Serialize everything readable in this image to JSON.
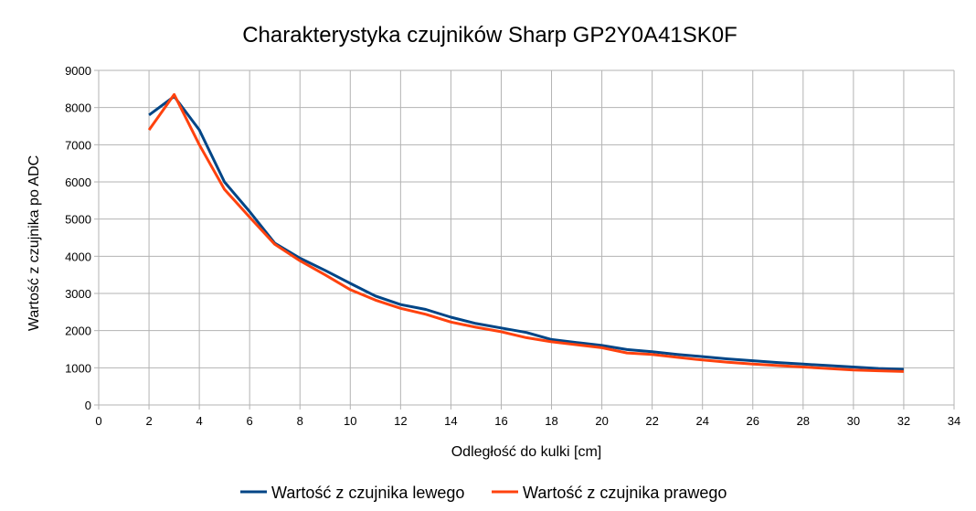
{
  "chart_data": {
    "type": "line",
    "title": "Charakterystyka czujników Sharp GP2Y0A41SK0F",
    "xlabel": "Odległość do kulki [cm]",
    "ylabel": "Wartość z czujnika po ADC",
    "xlim": [
      0,
      34
    ],
    "ylim": [
      0,
      9000
    ],
    "xticks": [
      0,
      2,
      4,
      6,
      8,
      10,
      12,
      14,
      16,
      18,
      20,
      22,
      24,
      26,
      28,
      30,
      32,
      34
    ],
    "yticks": [
      0,
      1000,
      2000,
      3000,
      4000,
      5000,
      6000,
      7000,
      8000,
      9000
    ],
    "grid": true,
    "legend_position": "bottom",
    "x": [
      2,
      3,
      4,
      5,
      6,
      7,
      8,
      9,
      10,
      11,
      12,
      13,
      14,
      15,
      16,
      17,
      18,
      19,
      20,
      21,
      22,
      23,
      24,
      25,
      26,
      27,
      28,
      29,
      30,
      31,
      32
    ],
    "series": [
      {
        "name": "Wartość z czujnika lewego",
        "color": "#004586",
        "values": [
          7800,
          8300,
          7400,
          6000,
          5200,
          4350,
          3950,
          3620,
          3270,
          2930,
          2700,
          2570,
          2360,
          2190,
          2070,
          1950,
          1760,
          1680,
          1600,
          1490,
          1430,
          1360,
          1300,
          1240,
          1190,
          1140,
          1100,
          1060,
          1020,
          980,
          960
        ]
      },
      {
        "name": "Wartość z czujnika prawego",
        "color": "#ff420e",
        "values": [
          7400,
          8350,
          7000,
          5800,
          5050,
          4320,
          3880,
          3500,
          3100,
          2820,
          2600,
          2440,
          2230,
          2090,
          1970,
          1810,
          1700,
          1620,
          1540,
          1400,
          1360,
          1280,
          1210,
          1150,
          1100,
          1060,
          1020,
          980,
          940,
          920,
          900
        ]
      }
    ]
  }
}
